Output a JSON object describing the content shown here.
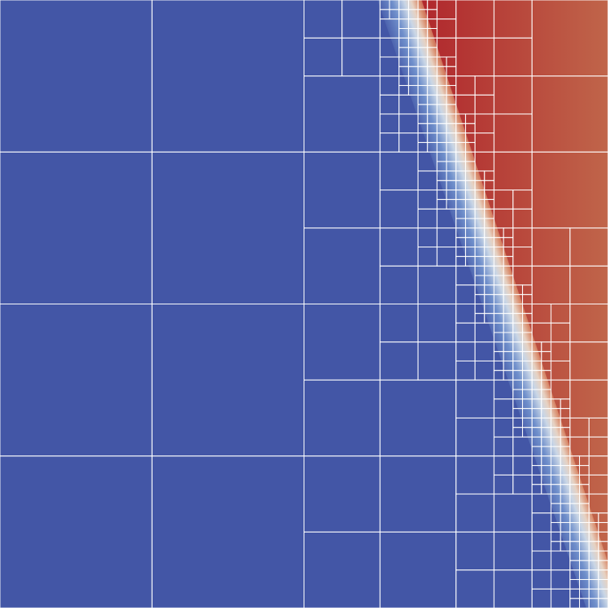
{
  "image": {
    "kind": "adaptive-mesh-refinement-field",
    "field": {
      "low_color": "#4356a6",
      "low_color_shade": "#3f51a2",
      "high_color_start": "#b0262c",
      "high_color_end": "#c0654a",
      "transition_colors": [
        "#4356a6",
        "#6f8fcb",
        "#c9d6e6",
        "#e7d2c2",
        "#d98c6c",
        "#b0262c"
      ]
    },
    "grid": {
      "line_color": "#ffffff",
      "line_opacity": 0.9
    }
  }
}
